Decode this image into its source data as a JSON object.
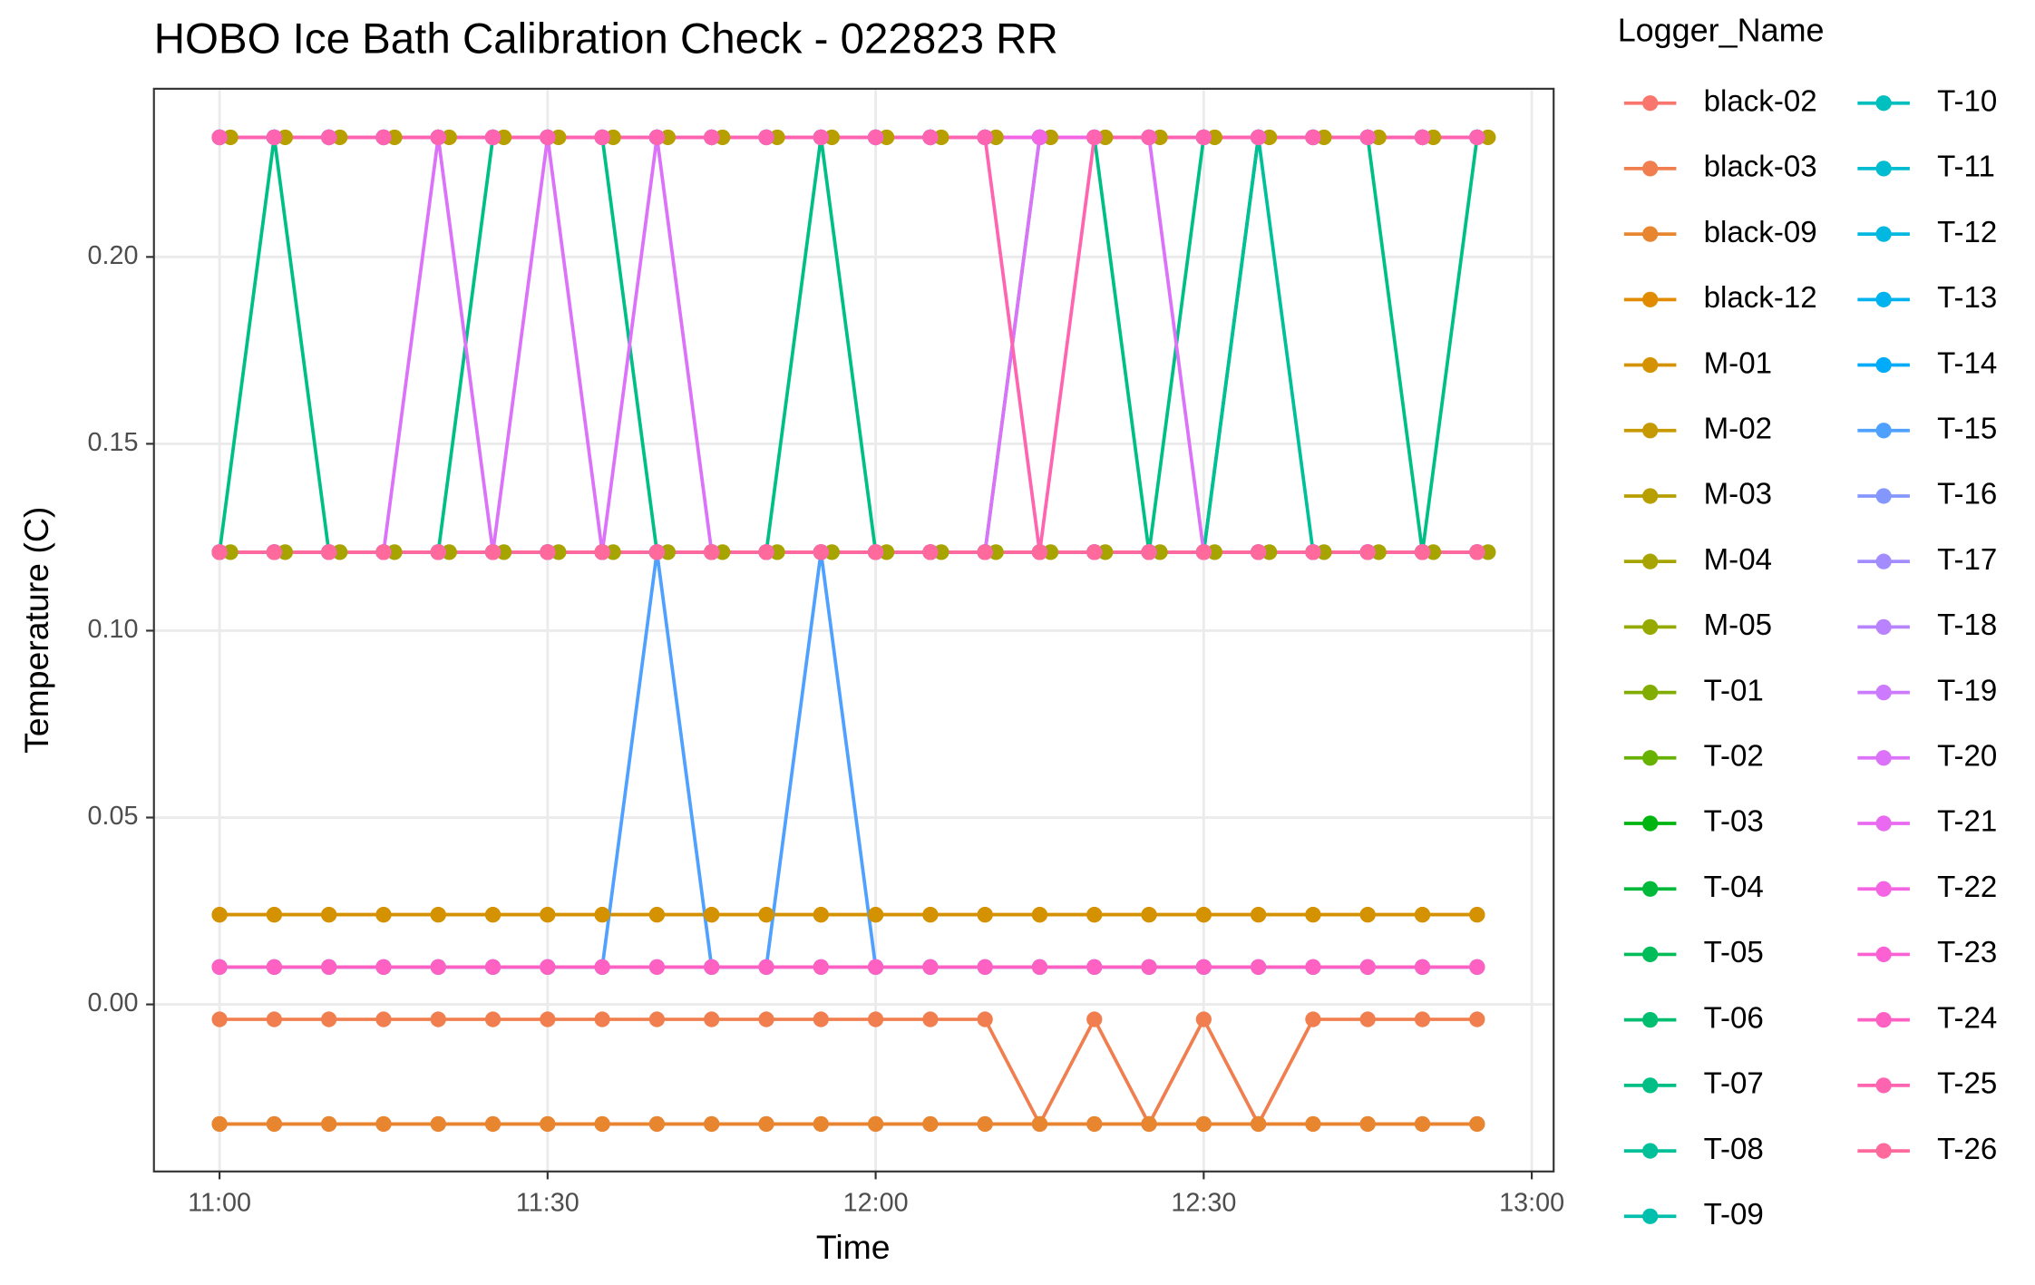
{
  "chart_data": {
    "type": "line",
    "title": "HOBO Ice Bath Calibration Check - 022823 RR",
    "x_label": "Time",
    "y_label": "Temperature (C)",
    "legend_title": "Logger_Name",
    "grid": true,
    "legend_position": "right",
    "xlim": [
      "10:54",
      "13:02"
    ],
    "xticks": [
      "11:00",
      "11:30",
      "12:00",
      "12:30",
      "13:00"
    ],
    "ylim": [
      -0.0447,
      0.245
    ],
    "yticks": [
      {
        "value": 0,
        "label": "0.00"
      },
      {
        "value": 0.05,
        "label": "0.05"
      },
      {
        "value": 0.1,
        "label": "0.10"
      },
      {
        "value": 0.15,
        "label": "0.15"
      },
      {
        "value": 0.2,
        "label": "0.20"
      }
    ],
    "x": [
      "11:00",
      "11:05",
      "11:10",
      "11:15",
      "11:20",
      "11:25",
      "11:30",
      "11:35",
      "11:40",
      "11:45",
      "11:50",
      "11:55",
      "12:00",
      "12:05",
      "12:10",
      "12:15",
      "12:20",
      "12:25",
      "12:30",
      "12:35",
      "12:40",
      "12:45",
      "12:50",
      "12:55"
    ],
    "series": [
      {
        "name": "black-02",
        "color": "#F8766D",
        "values": [
          -0.032,
          -0.032,
          -0.032,
          -0.032,
          -0.032,
          -0.032,
          -0.032,
          -0.032,
          -0.032,
          -0.032,
          -0.032,
          -0.032,
          -0.032,
          -0.032,
          -0.032,
          -0.032,
          -0.032,
          -0.032,
          -0.032,
          -0.032,
          -0.032,
          -0.032,
          -0.032,
          -0.032
        ]
      },
      {
        "name": "black-03",
        "color": "#F07E4F",
        "values": [
          -0.004,
          -0.004,
          -0.004,
          -0.004,
          -0.004,
          -0.004,
          -0.004,
          -0.004,
          -0.004,
          -0.004,
          -0.004,
          -0.004,
          -0.004,
          -0.004,
          -0.004,
          -0.032,
          -0.004,
          -0.032,
          -0.004,
          -0.032,
          -0.004,
          -0.004,
          -0.004,
          -0.004
        ]
      },
      {
        "name": "black-09",
        "color": "#E8852F",
        "values": [
          -0.032,
          -0.032,
          -0.032,
          -0.032,
          -0.032,
          -0.032,
          -0.032,
          -0.032,
          -0.032,
          -0.032,
          -0.032,
          -0.032,
          -0.032,
          -0.032,
          -0.032,
          -0.032,
          -0.032,
          -0.032,
          -0.032,
          -0.032,
          -0.032,
          -0.032,
          -0.032,
          -0.032
        ]
      },
      {
        "name": "black-12",
        "color": "#E08B00",
        "values": [
          0.024,
          0.024,
          0.024,
          0.024,
          0.024,
          0.024,
          0.024,
          0.024,
          0.024,
          0.024,
          0.024,
          0.024,
          0.024,
          0.024,
          0.024,
          0.024,
          0.024,
          0.024,
          0.024,
          0.024,
          0.024,
          0.024,
          0.024,
          0.024
        ]
      },
      {
        "name": "M-01",
        "color": "#D49200",
        "values": [
          0.024,
          0.024,
          0.024,
          0.024,
          0.024,
          0.024,
          0.024,
          0.024,
          0.024,
          0.024,
          0.024,
          0.024,
          0.024,
          0.024,
          0.024,
          0.024,
          0.024,
          0.024,
          0.024,
          0.024,
          0.024,
          0.024,
          0.024,
          0.024
        ]
      },
      {
        "name": "M-02",
        "color": "#C69900",
        "values": [
          0.232,
          0.232,
          0.232,
          0.232,
          0.232,
          0.232,
          0.232,
          0.232,
          0.232,
          0.232,
          0.232,
          0.232,
          0.232,
          0.232,
          0.232,
          0.232,
          0.232,
          0.232,
          0.232,
          0.232,
          0.232,
          0.232,
          0.232,
          0.232
        ]
      },
      {
        "name": "M-03",
        "color": "#B79F00",
        "x": [
          "11:01",
          "11:06",
          "11:11",
          "11:16",
          "11:21",
          "11:26",
          "11:31",
          "11:36",
          "11:41",
          "11:46",
          "11:51",
          "11:56",
          "12:01",
          "12:06",
          "12:11",
          "12:16",
          "12:21",
          "12:26",
          "12:31",
          "12:36",
          "12:41",
          "12:46",
          "12:51",
          "12:56"
        ],
        "values": [
          0.232,
          0.232,
          0.232,
          0.232,
          0.232,
          0.232,
          0.232,
          0.232,
          0.232,
          0.232,
          0.232,
          0.232,
          0.232,
          0.232,
          0.232,
          0.232,
          0.232,
          0.232,
          0.232,
          0.232,
          0.232,
          0.232,
          0.232,
          0.232
        ]
      },
      {
        "name": "M-04",
        "color": "#A7A400",
        "x": [
          "11:01",
          "11:06",
          "11:11",
          "11:16",
          "11:21",
          "11:26",
          "11:31",
          "11:36",
          "11:41",
          "11:46",
          "11:51",
          "11:56",
          "12:01",
          "12:06",
          "12:11",
          "12:16",
          "12:21",
          "12:26",
          "12:31",
          "12:36",
          "12:41",
          "12:46",
          "12:51",
          "12:56"
        ],
        "values": [
          0.121,
          0.121,
          0.121,
          0.121,
          0.121,
          0.121,
          0.121,
          0.121,
          0.121,
          0.121,
          0.121,
          0.121,
          0.121,
          0.121,
          0.121,
          0.121,
          0.121,
          0.121,
          0.121,
          0.121,
          0.121,
          0.121,
          0.121,
          0.121
        ]
      },
      {
        "name": "M-05",
        "color": "#95A900",
        "values": [
          0.121,
          0.121,
          0.121,
          0.121,
          0.121,
          0.121,
          0.121,
          0.121,
          0.121,
          0.121,
          0.121,
          0.121,
          0.121,
          0.121,
          0.121,
          0.121,
          0.121,
          0.121,
          0.121,
          0.121,
          0.121,
          0.121,
          0.121,
          0.121
        ]
      },
      {
        "name": "T-01",
        "color": "#81AD00",
        "values": [
          0.232,
          0.232,
          0.232,
          0.232,
          0.232,
          0.232,
          0.232,
          0.232,
          0.232,
          0.232,
          0.232,
          0.232,
          0.232,
          0.232,
          0.232,
          0.232,
          0.232,
          0.232,
          0.232,
          0.232,
          0.232,
          0.232,
          0.232,
          0.232
        ]
      },
      {
        "name": "T-02",
        "color": "#67B100",
        "values": [
          0.121,
          0.121,
          0.121,
          0.121,
          0.121,
          0.121,
          0.121,
          0.121,
          0.121,
          0.121,
          0.121,
          0.121,
          0.121,
          0.121,
          0.121,
          0.121,
          0.121,
          0.121,
          0.121,
          0.121,
          0.121,
          0.121,
          0.121,
          0.121
        ]
      },
      {
        "name": "T-03",
        "color": "#00B50F",
        "values": [
          0.121,
          0.121,
          0.121,
          0.121,
          0.121,
          0.121,
          0.121,
          0.121,
          0.121,
          0.121,
          0.121,
          0.121,
          0.121,
          0.121,
          0.121,
          0.121,
          0.121,
          0.121,
          0.121,
          0.232,
          0.232,
          0.232,
          0.232,
          0.232
        ]
      },
      {
        "name": "T-04",
        "color": "#00B93A",
        "values": [
          0.232,
          0.232,
          0.232,
          0.232,
          0.232,
          0.232,
          0.232,
          0.232,
          0.232,
          0.232,
          0.232,
          0.232,
          0.232,
          0.232,
          0.232,
          0.232,
          0.232,
          0.232,
          0.232,
          0.232,
          0.232,
          0.232,
          0.232,
          0.232
        ]
      },
      {
        "name": "T-05",
        "color": "#00BC59",
        "values": [
          0.121,
          0.121,
          0.121,
          0.121,
          0.121,
          0.121,
          0.121,
          0.121,
          0.121,
          0.121,
          0.121,
          0.121,
          0.121,
          0.121,
          0.121,
          0.121,
          0.121,
          0.121,
          0.121,
          0.121,
          0.121,
          0.121,
          0.121,
          0.121
        ]
      },
      {
        "name": "T-06",
        "color": "#00BE70",
        "values": [
          0.232,
          0.232,
          0.232,
          0.232,
          0.232,
          0.232,
          0.232,
          0.232,
          0.232,
          0.232,
          0.232,
          0.232,
          0.232,
          0.232,
          0.232,
          0.232,
          0.232,
          0.232,
          0.232,
          0.232,
          0.232,
          0.232,
          0.232,
          0.232
        ]
      },
      {
        "name": "T-07",
        "color": "#00BF86",
        "values": [
          0.121,
          0.232,
          0.121,
          0.121,
          0.121,
          0.232,
          0.232,
          0.232,
          0.121,
          0.121,
          0.121,
          0.232,
          0.121,
          0.121,
          0.121,
          0.232,
          0.232,
          0.121,
          0.232,
          0.232,
          0.232,
          0.232,
          0.121,
          0.232
        ]
      },
      {
        "name": "T-08",
        "color": "#00C09A",
        "values": [
          0.121,
          0.121,
          0.121,
          0.121,
          0.121,
          0.121,
          0.121,
          0.121,
          0.121,
          0.121,
          0.121,
          0.121,
          0.121,
          0.121,
          0.121,
          0.121,
          0.121,
          0.121,
          0.121,
          0.232,
          0.121,
          0.121,
          0.121,
          0.121
        ]
      },
      {
        "name": "T-09",
        "color": "#00C0AD",
        "values": [
          0.121,
          0.121,
          0.121,
          0.121,
          0.121,
          0.121,
          0.121,
          0.121,
          0.121,
          0.121,
          0.121,
          0.121,
          0.121,
          0.121,
          0.121,
          0.121,
          0.121,
          0.121,
          0.121,
          0.121,
          0.121,
          0.121,
          0.121,
          0.121
        ]
      },
      {
        "name": "T-10",
        "color": "#00BFBF",
        "values": [
          0.232,
          0.232,
          0.232,
          0.232,
          0.232,
          0.232,
          0.232,
          0.232,
          0.232,
          0.232,
          0.232,
          0.232,
          0.232,
          0.232,
          0.232,
          0.232,
          0.232,
          0.232,
          0.232,
          0.232,
          0.232,
          0.232,
          0.232,
          0.232
        ]
      },
      {
        "name": "T-11",
        "color": "#00BCD0",
        "values": [
          0.121,
          0.121,
          0.121,
          0.121,
          0.121,
          0.121,
          0.121,
          0.121,
          0.121,
          0.121,
          0.121,
          0.121,
          0.121,
          0.121,
          0.121,
          0.121,
          0.121,
          0.121,
          0.121,
          0.121,
          0.121,
          0.121,
          0.121,
          0.121
        ]
      },
      {
        "name": "T-12",
        "color": "#00B8E0",
        "values": [
          0.232,
          0.232,
          0.232,
          0.232,
          0.232,
          0.232,
          0.232,
          0.232,
          0.232,
          0.232,
          0.232,
          0.232,
          0.232,
          0.232,
          0.232,
          0.232,
          0.232,
          0.232,
          0.232,
          0.232,
          0.232,
          0.232,
          0.232,
          0.232
        ]
      },
      {
        "name": "T-13",
        "color": "#00B2EE",
        "values": [
          0.121,
          0.121,
          0.121,
          0.121,
          0.121,
          0.121,
          0.121,
          0.121,
          0.121,
          0.121,
          0.121,
          0.121,
          0.121,
          0.121,
          0.121,
          0.121,
          0.121,
          0.121,
          0.121,
          0.121,
          0.121,
          0.121,
          0.121,
          0.121
        ]
      },
      {
        "name": "T-14",
        "color": "#00ABFA",
        "values": [
          0.232,
          0.232,
          0.232,
          0.232,
          0.232,
          0.232,
          0.232,
          0.232,
          0.232,
          0.232,
          0.232,
          0.232,
          0.232,
          0.232,
          0.232,
          0.232,
          0.232,
          0.232,
          0.232,
          0.232,
          0.232,
          0.232,
          0.232,
          0.232
        ]
      },
      {
        "name": "T-15",
        "color": "#4FA1FF",
        "values": [
          0.01,
          0.01,
          0.01,
          0.01,
          0.01,
          0.01,
          0.01,
          0.01,
          0.121,
          0.01,
          0.01,
          0.121,
          0.01,
          0.01,
          0.01,
          0.01,
          0.01,
          0.01,
          0.01,
          0.01,
          0.01,
          0.01,
          0.01,
          0.01
        ]
      },
      {
        "name": "T-16",
        "color": "#8497FF",
        "values": [
          0.01,
          0.01,
          0.01,
          0.01,
          0.01,
          0.01,
          0.01,
          0.01,
          0.01,
          0.01,
          0.01,
          0.01,
          0.01,
          0.01,
          0.01,
          0.01,
          0.01,
          0.01,
          0.01,
          0.01,
          0.01,
          0.01,
          0.01,
          0.01
        ]
      },
      {
        "name": "T-17",
        "color": "#A28CFF",
        "values": [
          0.232,
          0.232,
          0.232,
          0.232,
          0.232,
          0.232,
          0.232,
          0.232,
          0.232,
          0.232,
          0.232,
          0.232,
          0.232,
          0.232,
          0.232,
          0.232,
          0.232,
          0.232,
          0.232,
          0.232,
          0.232,
          0.232,
          0.232,
          0.232
        ]
      },
      {
        "name": "T-18",
        "color": "#B983FF",
        "values": [
          0.121,
          0.121,
          0.121,
          0.121,
          0.121,
          0.121,
          0.121,
          0.121,
          0.121,
          0.121,
          0.121,
          0.121,
          0.121,
          0.121,
          0.121,
          0.121,
          0.121,
          0.121,
          0.121,
          0.121,
          0.121,
          0.121,
          0.121,
          0.121
        ]
      },
      {
        "name": "T-19",
        "color": "#CC7AFF",
        "values": [
          0.232,
          0.232,
          0.232,
          0.232,
          0.232,
          0.232,
          0.232,
          0.232,
          0.232,
          0.232,
          0.232,
          0.232,
          0.232,
          0.232,
          0.232,
          0.232,
          0.232,
          0.232,
          0.232,
          0.232,
          0.232,
          0.232,
          0.232,
          0.232
        ]
      },
      {
        "name": "T-20",
        "color": "#DC71FA",
        "values": [
          0.121,
          0.121,
          0.121,
          0.121,
          0.232,
          0.121,
          0.232,
          0.121,
          0.232,
          0.121,
          0.121,
          0.121,
          0.121,
          0.121,
          0.121,
          0.232,
          0.232,
          0.232,
          0.121,
          0.121,
          0.121,
          0.121,
          0.121,
          0.121
        ]
      },
      {
        "name": "T-21",
        "color": "#E96AF0",
        "values": [
          0.121,
          0.121,
          0.121,
          0.121,
          0.121,
          0.121,
          0.121,
          0.121,
          0.121,
          0.121,
          0.121,
          0.121,
          0.121,
          0.121,
          0.121,
          0.121,
          0.121,
          0.121,
          0.121,
          0.121,
          0.121,
          0.121,
          0.121,
          0.121
        ]
      },
      {
        "name": "T-22",
        "color": "#F464E3",
        "values": [
          0.232,
          0.232,
          0.232,
          0.232,
          0.232,
          0.232,
          0.232,
          0.232,
          0.232,
          0.232,
          0.232,
          0.232,
          0.232,
          0.232,
          0.232,
          0.232,
          0.232,
          0.232,
          0.232,
          0.232,
          0.232,
          0.232,
          0.232,
          0.232
        ]
      },
      {
        "name": "T-23",
        "color": "#FC61D4",
        "values": [
          0.121,
          0.121,
          0.121,
          0.121,
          0.121,
          0.121,
          0.121,
          0.121,
          0.121,
          0.121,
          0.121,
          0.121,
          0.121,
          0.121,
          0.121,
          0.121,
          0.121,
          0.121,
          0.121,
          0.121,
          0.121,
          0.121,
          0.121,
          0.121
        ]
      },
      {
        "name": "T-24",
        "color": "#FF61C3",
        "values": [
          0.01,
          0.01,
          0.01,
          0.01,
          0.01,
          0.01,
          0.01,
          0.01,
          0.01,
          0.01,
          0.01,
          0.01,
          0.01,
          0.01,
          0.01,
          0.01,
          0.01,
          0.01,
          0.01,
          0.01,
          0.01,
          0.01,
          0.01,
          0.01
        ]
      },
      {
        "name": "T-25",
        "color": "#FF64B0",
        "values": [
          0.232,
          0.232,
          0.232,
          0.232,
          0.232,
          0.232,
          0.232,
          0.232,
          0.232,
          0.232,
          0.232,
          0.232,
          0.232,
          0.232,
          0.232,
          0.121,
          0.232,
          0.232,
          0.232,
          0.232,
          0.232,
          0.232,
          0.232,
          0.232
        ]
      },
      {
        "name": "T-26",
        "color": "#FF699C",
        "values": [
          0.121,
          0.121,
          0.121,
          0.121,
          0.121,
          0.121,
          0.121,
          0.121,
          0.121,
          0.121,
          0.121,
          0.121,
          0.121,
          0.121,
          0.121,
          0.121,
          0.121,
          0.121,
          0.121,
          0.121,
          0.121,
          0.121,
          0.121,
          0.121
        ]
      }
    ]
  }
}
